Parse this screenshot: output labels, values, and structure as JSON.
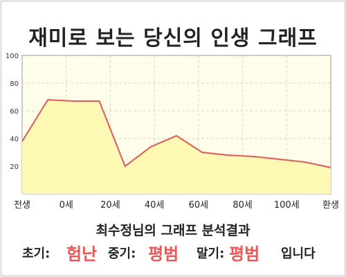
{
  "title": "재미로 보는 당신의 인생 그래프",
  "chart_data": {
    "type": "area",
    "x_tick_labels": [
      "전생",
      "0세",
      "20세",
      "40세",
      "60세",
      "80세",
      "100세",
      "환생"
    ],
    "y_ticks": [
      20,
      40,
      60,
      80,
      100
    ],
    "ylim": [
      0,
      100
    ],
    "grid": true,
    "x": [
      "전생",
      "0세",
      "10세",
      "20세",
      "30세",
      "40세",
      "50세",
      "60세",
      "70세",
      "80세",
      "90세",
      "100세",
      "환생"
    ],
    "values": [
      38,
      68,
      67,
      67,
      20,
      34,
      42,
      30,
      28,
      27,
      25,
      23,
      19
    ],
    "line_color": "#e05a5a",
    "fill_color": "#fdf8b4",
    "plot_background": "#fefde9",
    "grid_color": "#d8d8c4"
  },
  "subtitle": "최수정님의 그래프 분석결과",
  "result": {
    "early_label": "초기:",
    "early_value": "험난",
    "mid_label": "중기:",
    "mid_value": "평범",
    "late_label": "말기:",
    "late_value": "평범",
    "ending": "입니다"
  }
}
